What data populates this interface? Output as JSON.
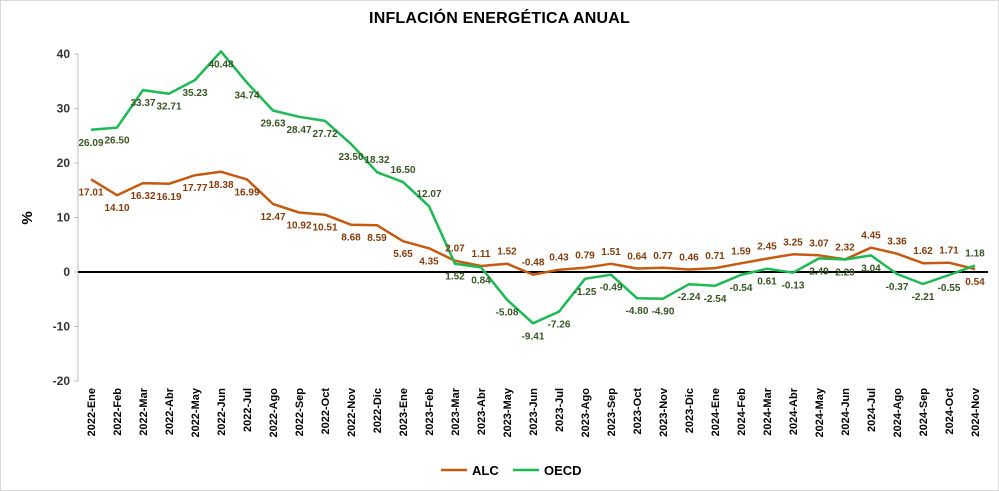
{
  "chart_data": {
    "type": "line",
    "title": "INFLACIÓN ENERGÉTICA ANUAL",
    "ylabel": "%",
    "xlabel": "",
    "ylim": [
      -20,
      40
    ],
    "yticks": [
      -20,
      -10,
      0,
      10,
      20,
      30,
      40
    ],
    "grid": false,
    "legend": "bottom",
    "categories": [
      "2022-Ene",
      "2022-Feb",
      "2022-Mar",
      "2022-Abr",
      "2022-May",
      "2022-Jun",
      "2022-Jul",
      "2022-Ago",
      "2022-Sep",
      "2022-Oct",
      "2022-Nov",
      "2022-Dic",
      "2023-Ene",
      "2023-Feb",
      "2023-Mar",
      "2023-Abr",
      "2023-May",
      "2023-Jun",
      "2023-Jul",
      "2023-Ago",
      "2023-Sep",
      "2023-Oct",
      "2023-Nov",
      "2023-Dic",
      "2024-Ene",
      "2024-Feb",
      "2024-Mar",
      "2024-Abr",
      "2024-May",
      "2024-Jun",
      "2024-Jul",
      "2024-Ago",
      "2024-Sep",
      "2024-Oct",
      "2024-Nov"
    ],
    "series": [
      {
        "name": "ALC",
        "color": "#c55a11",
        "values": [
          17.01,
          14.1,
          16.32,
          16.19,
          17.77,
          18.38,
          16.99,
          12.47,
          10.92,
          10.51,
          8.68,
          8.59,
          5.65,
          4.35,
          2.07,
          1.11,
          1.52,
          -0.48,
          0.43,
          0.79,
          1.51,
          0.64,
          0.77,
          0.46,
          0.71,
          1.59,
          2.45,
          3.25,
          3.07,
          2.32,
          4.45,
          3.36,
          1.62,
          1.71,
          0.54
        ],
        "labels": [
          "17.01",
          "14.10",
          "16.32",
          "16.19",
          "17.77",
          "18.38",
          "16.99",
          "12.47",
          "10.92",
          "10.51",
          "8.68",
          "8.59",
          "5.65",
          "4.35",
          "2.07",
          "1.11",
          "1.52",
          "-0.48",
          "0.43",
          "0.79",
          "1.51",
          "0.64",
          "0.77",
          "0.46",
          "0.71",
          "1.59",
          "2.45",
          "3.25",
          "3.07",
          "2.32",
          "4.45",
          "3.36",
          "1.62",
          "1.71",
          "0.54"
        ]
      },
      {
        "name": "OECD",
        "color": "#1db954",
        "values": [
          26.09,
          26.5,
          33.37,
          32.71,
          35.23,
          40.48,
          34.74,
          29.63,
          28.47,
          27.72,
          23.5,
          18.32,
          16.5,
          12.07,
          1.52,
          0.84,
          -5.08,
          -9.41,
          -7.26,
          -1.25,
          -0.49,
          -4.8,
          -4.9,
          -2.24,
          -2.54,
          -0.54,
          0.61,
          -0.13,
          2.49,
          2.29,
          3.04,
          -0.37,
          -2.21,
          -0.55,
          1.18
        ],
        "labels": [
          "26.09",
          "26.50",
          "33.37",
          "32.71",
          "35.23",
          "40.48",
          "34.74",
          "29.63",
          "28.47",
          "27.72",
          "23.50",
          "18.32",
          "16.50",
          "12.07",
          "1.52",
          "0.84",
          "-5.08",
          "-9.41",
          "-7.26",
          "-1.25",
          "-0.49",
          "-4.80",
          "-4.90",
          "-2.24",
          "-2.54",
          "-0.54",
          "0.61",
          "-0.13",
          "2.49",
          "2.29",
          "3.04",
          "-0.37",
          "-2.21",
          "-0.55",
          "1.18"
        ]
      }
    ]
  }
}
